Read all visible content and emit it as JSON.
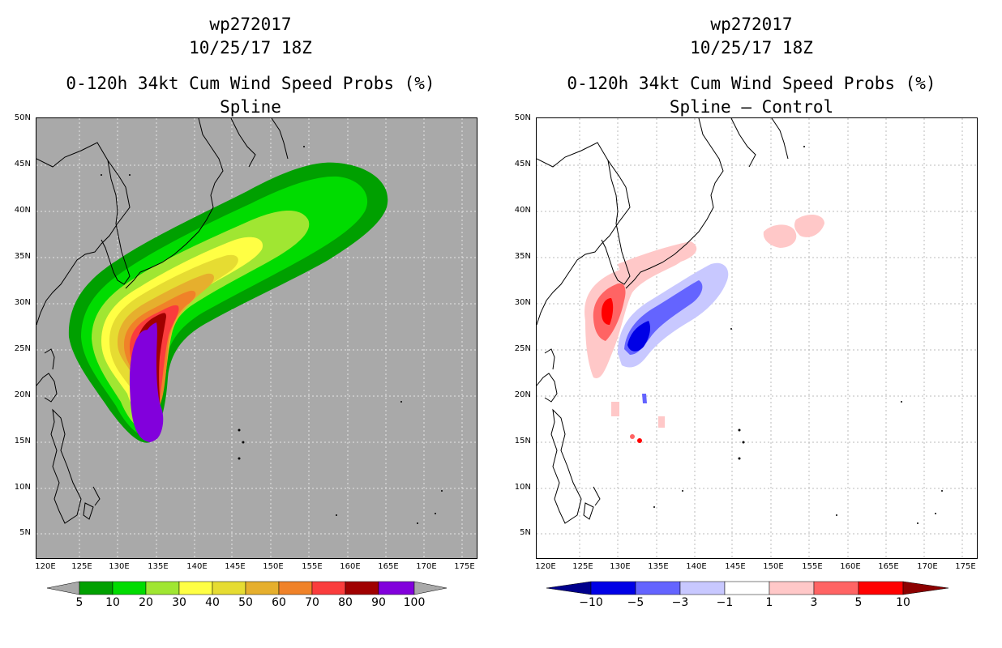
{
  "left": {
    "storm_id": "wp272017",
    "datetime": "10/25/17 18Z",
    "product": "0-120h 34kt Cum Wind Speed Probs (%)",
    "subtitle": "Spline",
    "lat_labels": [
      "50N",
      "45N",
      "40N",
      "35N",
      "30N",
      "25N",
      "20N",
      "15N",
      "10N",
      "5N"
    ],
    "lon_labels": [
      "120E",
      "125E",
      "130E",
      "135E",
      "140E",
      "145E",
      "150E",
      "155E",
      "160E",
      "165E",
      "170E",
      "175E"
    ],
    "colorbar_labels": [
      "5",
      "10",
      "20",
      "30",
      "40",
      "50",
      "60",
      "70",
      "80",
      "90",
      "100"
    ],
    "colorbar_colors": [
      "#00a000",
      "#00dc00",
      "#a0e632",
      "#ffff44",
      "#e6dc32",
      "#e6af2d",
      "#f08228",
      "#fa3c3c",
      "#a00000",
      "#8200dc"
    ],
    "background_color": "#a9a9a9"
  },
  "right": {
    "storm_id": "wp272017",
    "datetime": "10/25/17 18Z",
    "product": "0-120h 34kt Cum Wind Speed Probs (%)",
    "subtitle": "Spline – Control",
    "lat_labels": [
      "50N",
      "45N",
      "40N",
      "35N",
      "30N",
      "25N",
      "20N",
      "15N",
      "10N",
      "5N"
    ],
    "lon_labels": [
      "120E",
      "125E",
      "130E",
      "135E",
      "140E",
      "145E",
      "150E",
      "155E",
      "160E",
      "165E",
      "170E",
      "175E"
    ],
    "colorbar_labels": [
      "−10",
      "−5",
      "−3",
      "−1",
      "1",
      "3",
      "5",
      "10"
    ],
    "colorbar_colors": [
      "#0000e6",
      "#6464ff",
      "#c8c8ff",
      "#ffffff",
      "#ffc8c8",
      "#ff6464",
      "#ff0000"
    ],
    "end_left_color": "#00008c",
    "end_right_color": "#8c0000"
  }
}
